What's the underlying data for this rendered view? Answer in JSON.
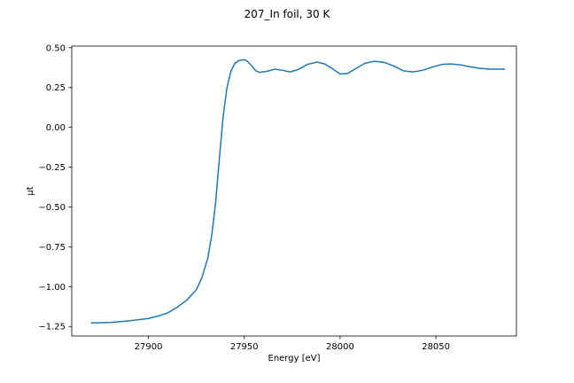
{
  "chart_data": {
    "type": "line",
    "title": "207_In foil, 30 K",
    "xlabel": "Energy [eV]",
    "ylabel": "μt",
    "xlim": [
      27860,
      28092
    ],
    "ylim": [
      -1.31,
      0.51
    ],
    "xticks": [
      27900,
      27950,
      28000,
      28050
    ],
    "xtick_labels": [
      "27900",
      "27950",
      "28000",
      "28050"
    ],
    "yticks": [
      0.5,
      0.25,
      0.0,
      -0.25,
      -0.5,
      -0.75,
      -1.0,
      -1.25
    ],
    "ytick_labels": [
      "0.50",
      "0.25",
      "0.00",
      "−0.25",
      "−0.50",
      "−0.75",
      "−1.00",
      "−1.25"
    ],
    "grid": false,
    "legend": "none",
    "series": [
      {
        "color": "#1f77b4",
        "x": [
          27870,
          27880,
          27890,
          27900,
          27905,
          27910,
          27915,
          27920,
          27925,
          27928,
          27931,
          27933,
          27935,
          27937,
          27939,
          27941,
          27943,
          27945,
          27947,
          27949,
          27950,
          27951,
          27952,
          27954,
          27956,
          27958,
          27962,
          27966,
          27970,
          27974,
          27978,
          27983,
          27988,
          27992,
          27996,
          28000,
          28004,
          28008,
          28013,
          28018,
          28023,
          28028,
          28033,
          28038,
          28043,
          28048,
          28053,
          28058,
          28063,
          28068,
          28073,
          28078,
          28083,
          28086
        ],
        "values": [
          -1.228,
          -1.225,
          -1.215,
          -1.2,
          -1.185,
          -1.165,
          -1.13,
          -1.085,
          -1.02,
          -0.94,
          -0.82,
          -0.68,
          -0.48,
          -0.2,
          0.07,
          0.25,
          0.35,
          0.4,
          0.418,
          0.423,
          0.425,
          0.42,
          0.41,
          0.385,
          0.355,
          0.345,
          0.352,
          0.365,
          0.358,
          0.348,
          0.362,
          0.395,
          0.41,
          0.398,
          0.368,
          0.335,
          0.338,
          0.368,
          0.402,
          0.415,
          0.408,
          0.385,
          0.355,
          0.348,
          0.358,
          0.378,
          0.395,
          0.398,
          0.392,
          0.38,
          0.37,
          0.365,
          0.365,
          0.366
        ]
      }
    ]
  }
}
